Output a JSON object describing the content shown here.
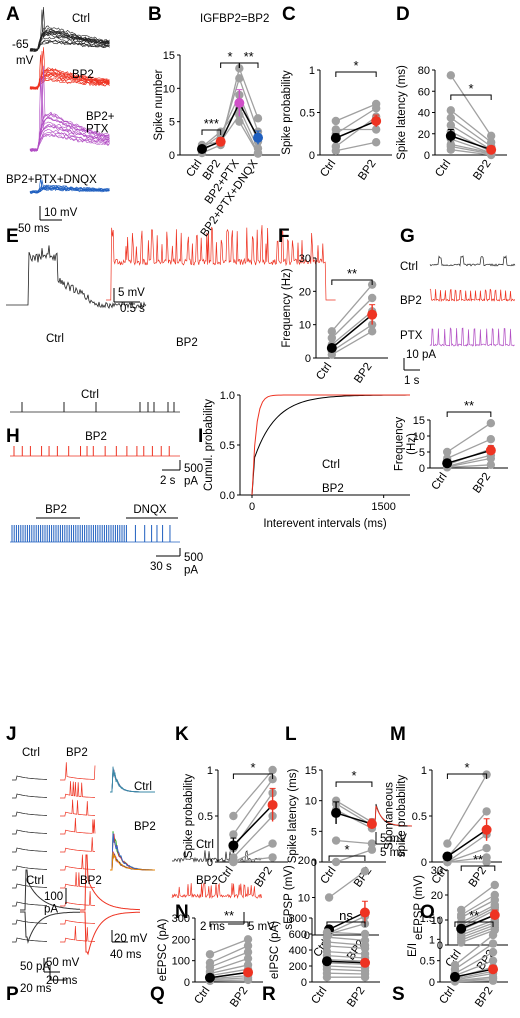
{
  "panel_letters": [
    "A",
    "B",
    "C",
    "D",
    "E",
    "F",
    "G",
    "H",
    "I",
    "J",
    "K",
    "L",
    "M",
    "N",
    "O",
    "P",
    "Q",
    "R",
    "S"
  ],
  "panelA": {
    "labels": [
      "Ctrl",
      "BP2",
      "BP2+\nPTX",
      "BP2+PTX+DNQX"
    ],
    "vm": "-65",
    "vm_unit": "mV",
    "scale_v": "10 mV",
    "scale_t": "50 ms"
  },
  "panelB": {
    "title": "IGFBP2=BP2",
    "ylabel": "Spike number",
    "sig": [
      "***",
      "*",
      "**"
    ]
  },
  "panelC": {
    "ylabel": "Spike probability",
    "sig": "*"
  },
  "panelD": {
    "ylabel": "Spike latency (ms)",
    "sig": "*"
  },
  "panelE": {
    "labels": [
      "Ctrl",
      "BP2"
    ],
    "scale_v": "5 mV",
    "scale_t": "0.5 s"
  },
  "panelF": {
    "ylabel": "Frequency (Hz)",
    "sig": "**"
  },
  "panelG": {
    "labels": [
      "Ctrl",
      "BP2",
      "PTX"
    ],
    "scale_i": "10 pA",
    "scale_t": "1 s"
  },
  "panelH": {
    "labels": [
      "Ctrl",
      "BP2",
      "BP2",
      "DNQX"
    ],
    "scale_i": "500\npA",
    "scale_t1": "2 s",
    "scale_t2": "30 s"
  },
  "panelI": {
    "ylabel": "Cumul. probability",
    "xlabel": "Interevent intervals (ms)",
    "legend": [
      "Ctrl",
      "BP2"
    ],
    "inset_ylabel": "Frequency\n(Hz)",
    "sig": "**"
  },
  "panelJ": {
    "labels": [
      "Ctrl",
      "BP2",
      "Ctrl",
      "BP2"
    ],
    "scale_v": "50 mV",
    "scale_t": "20 ms",
    "scale_v2": "20 mV",
    "scale_t2": "40 ms"
  },
  "panelK": {
    "ylabel": "Spike probability",
    "sig": "*"
  },
  "panelL": {
    "ylabel": "Spike latency (ms)",
    "sig": "*"
  },
  "panelM": {
    "ylabel": "Spontaneous\nspike probability",
    "sig": "*"
  },
  "panelN": {
    "labels": [
      "Ctrl",
      "BP2"
    ],
    "ylabel": "sEPSP (mV)",
    "sig": "*",
    "scale_t": "2 ms",
    "scale_v": "5 mV",
    "inset_v": "5 mV",
    "inset_t": "5 ms"
  },
  "panelO": {
    "ylabel": "eEPSP (mV)",
    "sig": "**"
  },
  "panelP": {
    "labels": [
      "Ctrl",
      "BP2"
    ],
    "scale_i1": "100\npA",
    "scale_i2": "50 pA",
    "scale_t": "20 ms"
  },
  "panelQ": {
    "ylabel": "eEPSC (pA)",
    "sig": "**"
  },
  "panelR": {
    "ylabel": "eIPSC (pA)",
    "sig": "ns"
  },
  "panelS": {
    "ylabel": "E/I",
    "sig": "**"
  },
  "x_ctrl_bp2": [
    "Ctrl",
    "BP2"
  ],
  "x_B": [
    "Ctrl",
    "BP2",
    "BP2+PTX",
    "BP2+PTX+DNQX"
  ],
  "chart_data": [
    {
      "type": "scatter",
      "panel": "B",
      "categories": [
        "Ctrl",
        "BP2",
        "BP2+PTX",
        "BP2+PTX+DNQX"
      ],
      "ylim": [
        0,
        15
      ],
      "yticks": [
        0,
        5,
        10,
        15
      ],
      "means": [
        0.9,
        2.0,
        7.8,
        2.6
      ],
      "errors": [
        0.3,
        0.6,
        2.0,
        1.0
      ],
      "individual": [
        [
          0.3,
          0.6,
          1.0,
          1.2,
          1.5
        ],
        [
          1.5,
          2.3,
          3.0,
          3.5,
          2.0
        ],
        [
          13.0,
          11.5,
          9.0,
          7.0,
          6.0,
          5.0
        ],
        [
          5.5,
          3.5,
          2.0,
          1.0,
          0.3,
          0.2
        ]
      ]
    },
    {
      "type": "scatter",
      "panel": "C",
      "categories": [
        "Ctrl",
        "BP2"
      ],
      "ylim": [
        0,
        1
      ],
      "yticks": [
        0,
        0.5,
        1.0
      ],
      "means": [
        0.2,
        0.4
      ],
      "errors": [
        0.05,
        0.07
      ],
      "individual": [
        [
          0.4,
          0.25,
          0.1,
          0.05,
          0.3
        ],
        [
          0.6,
          0.55,
          0.45,
          0.15,
          0.3
        ]
      ]
    },
    {
      "type": "scatter",
      "panel": "D",
      "categories": [
        "Ctrl",
        "BP2"
      ],
      "ylim": [
        0,
        80
      ],
      "yticks": [
        0,
        20,
        40,
        60,
        80
      ],
      "means": [
        18,
        5
      ],
      "errors": [
        6,
        2
      ],
      "individual": [
        [
          75,
          42,
          35,
          28,
          22,
          15,
          10,
          8,
          5
        ],
        [
          18,
          12,
          8,
          5,
          3,
          2,
          2,
          1,
          0
        ]
      ]
    },
    {
      "type": "scatter",
      "panel": "F",
      "categories": [
        "Ctrl",
        "BP2"
      ],
      "ylim": [
        0,
        30
      ],
      "yticks": [
        0,
        10,
        20,
        30
      ],
      "means": [
        3,
        13
      ],
      "errors": [
        1,
        3
      ],
      "individual": [
        [
          8,
          6,
          4,
          2,
          1
        ],
        [
          22,
          18,
          14,
          10,
          8
        ]
      ]
    },
    {
      "type": "line",
      "panel": "I",
      "xlim": [
        0,
        1800
      ],
      "xticks": [
        0,
        1500
      ],
      "ylim": [
        0,
        1
      ],
      "yticks": [
        0,
        0.5,
        1.0
      ]
    },
    {
      "type": "scatter",
      "panel": "I-inset",
      "categories": [
        "Ctrl",
        "BP2"
      ],
      "ylim": [
        0,
        15
      ],
      "yticks": [
        0,
        5,
        10,
        15
      ],
      "means": [
        1.5,
        5.5
      ],
      "errors": [
        0.6,
        1.5
      ],
      "individual": [
        [
          5,
          3,
          1,
          0.5,
          0.3,
          0.2
        ],
        [
          14,
          9,
          6,
          4,
          3,
          1
        ]
      ]
    },
    {
      "type": "scatter",
      "panel": "K",
      "categories": [
        "Ctrl",
        "BP2"
      ],
      "ylim": [
        0,
        1
      ],
      "yticks": [
        0,
        0.5,
        1.0
      ],
      "means": [
        0.18,
        0.62
      ],
      "errors": [
        0.08,
        0.18
      ],
      "individual": [
        [
          0.5,
          0.3,
          0.15,
          0.05,
          0,
          0
        ],
        [
          1.0,
          0.9,
          0.75,
          0.5,
          0.2,
          0.05
        ]
      ]
    },
    {
      "type": "scatter",
      "panel": "L",
      "categories": [
        "Ctrl",
        "BP2"
      ],
      "ylim": [
        0,
        15
      ],
      "yticks": [
        0,
        5,
        10,
        15
      ],
      "means": [
        8,
        6.2
      ],
      "errors": [
        1.8,
        0.8
      ],
      "individual": [
        [
          10,
          9.5,
          8.5,
          3.5,
          0
        ],
        [
          6.5,
          6,
          5.5,
          3,
          2
        ]
      ]
    },
    {
      "type": "scatter",
      "panel": "M",
      "categories": [
        "Ctrl",
        "BP2"
      ],
      "ylim": [
        0,
        1
      ],
      "yticks": [
        0,
        0.5,
        1.0
      ],
      "means": [
        0.06,
        0.35
      ],
      "errors": [
        0.04,
        0.12
      ],
      "individual": [
        [
          0.2,
          0.05,
          0,
          0,
          0,
          0
        ],
        [
          0.95,
          0.55,
          0.3,
          0.15,
          0.05,
          0
        ]
      ]
    },
    {
      "type": "scatter",
      "panel": "N",
      "categories": [
        "Ctrl",
        "BP2"
      ],
      "ylim": [
        0,
        20
      ],
      "yticks": [
        0,
        10,
        20
      ],
      "means": [
        1.5,
        6
      ],
      "errors": [
        1.0,
        3
      ],
      "individual": [
        [
          10,
          0.5,
          0.3
        ],
        [
          17,
          5,
          3
        ]
      ]
    },
    {
      "type": "scatter",
      "panel": "O",
      "categories": [
        "Ctrl",
        "BP2"
      ],
      "ylim": [
        0,
        30
      ],
      "yticks": [
        0,
        10,
        20,
        30
      ],
      "means": [
        6.5,
        12
      ],
      "errors": [
        1.5,
        2
      ],
      "individual": [
        [
          14,
          12,
          11,
          9,
          8,
          7,
          6,
          5,
          4,
          3,
          2,
          1
        ],
        [
          24,
          20,
          18,
          16,
          15,
          14,
          12,
          10,
          9,
          8,
          7,
          6
        ]
      ]
    },
    {
      "type": "scatter",
      "panel": "Q",
      "categories": [
        "Ctrl",
        "BP2"
      ],
      "ylim": [
        0,
        300
      ],
      "yticks": [
        0,
        100,
        200,
        300
      ],
      "means": [
        20,
        45
      ],
      "errors": [
        6,
        10
      ],
      "individual": [
        [
          130,
          90,
          70,
          50,
          40,
          30,
          20,
          15,
          10,
          5
        ],
        [
          200,
          170,
          140,
          110,
          80,
          60,
          45,
          30,
          20,
          10
        ]
      ]
    },
    {
      "type": "scatter",
      "panel": "R",
      "categories": [
        "Ctrl",
        "BP2"
      ],
      "ylim": [
        0,
        800
      ],
      "yticks": [
        0,
        200,
        400,
        600,
        800
      ],
      "means": [
        260,
        240
      ],
      "errors": [
        40,
        40
      ],
      "individual": [
        [
          620,
          560,
          500,
          450,
          380,
          330,
          280,
          240,
          200,
          160,
          110,
          60
        ],
        [
          600,
          520,
          460,
          420,
          350,
          300,
          260,
          220,
          180,
          140,
          100,
          60
        ]
      ]
    },
    {
      "type": "scatter",
      "panel": "S",
      "categories": [
        "Ctrl",
        "BP2"
      ],
      "ylim": [
        0,
        1.5
      ],
      "yticks": [
        0,
        0.5,
        1.0,
        1.5
      ],
      "means": [
        0.12,
        0.3
      ],
      "errors": [
        0.03,
        0.06
      ],
      "individual": [
        [
          0.4,
          0.3,
          0.2,
          0.15,
          0.1,
          0.08,
          0.05,
          0.03,
          0.02,
          0.01
        ],
        [
          1.1,
          0.9,
          0.7,
          0.5,
          0.35,
          0.25,
          0.2,
          0.12,
          0.08,
          0.03
        ]
      ]
    }
  ]
}
